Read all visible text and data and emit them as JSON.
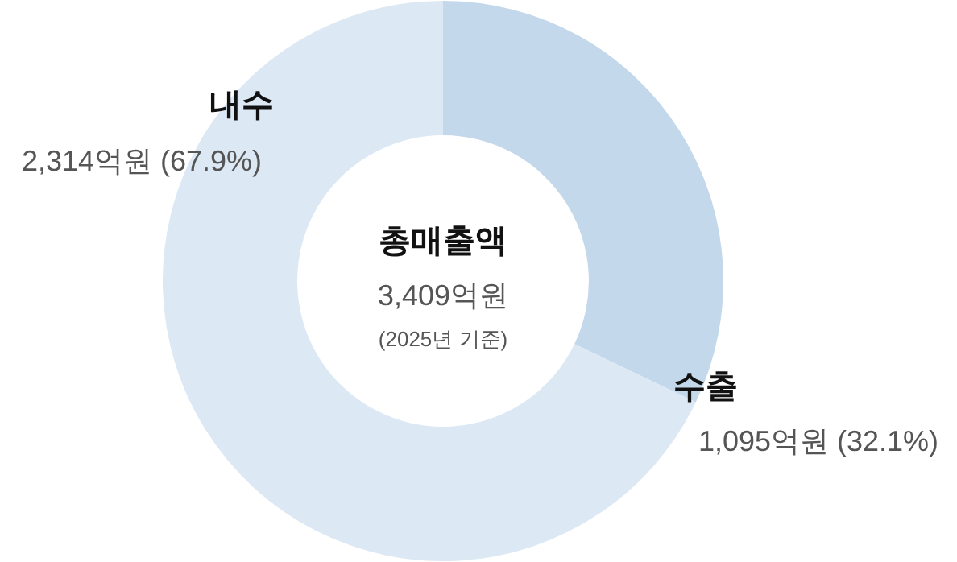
{
  "chart_data": {
    "type": "donut",
    "title": "총매출액",
    "annotations": [
      "3,409억원",
      "(2025년 기준)"
    ],
    "categories": [
      "수출",
      "내수"
    ],
    "values": [
      1095,
      2314
    ],
    "colors": [
      "#c3d8eb",
      "#dce9f4"
    ],
    "value_labels": [
      "1,095억원 (32.1%)",
      "2,314억원 (67.9%)"
    ],
    "legend": false
  }
}
